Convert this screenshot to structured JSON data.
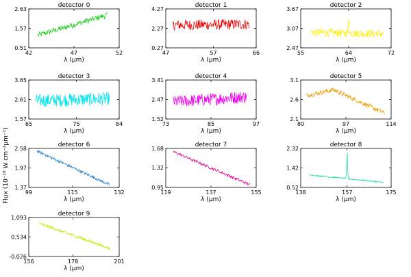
{
  "figure": {
    "ylabel": "Flux (10⁻¹⁸ W cm⁻²μm⁻¹)"
  },
  "chart_data": [
    {
      "type": "line",
      "title": "detector 0",
      "xlabel": "λ (μm)",
      "xticks": [
        "42",
        "47",
        "52"
      ],
      "yticks": [
        "0.51",
        "1.57",
        "2.63"
      ],
      "xlim": [
        42,
        52
      ],
      "ylim": [
        0.51,
        2.63
      ],
      "color": "#00cc00",
      "xrange": [
        43.0,
        50.7
      ],
      "shape": "rising",
      "start": 1.2,
      "end": 2.3,
      "noise": 0.15,
      "n": 120
    },
    {
      "type": "line",
      "title": "detector 1",
      "xlabel": "λ (μm)",
      "xticks": [
        "47",
        "57",
        "66"
      ],
      "yticks": [
        "0.27",
        "2.27",
        "4.27"
      ],
      "xlim": [
        47,
        66
      ],
      "ylim": [
        0.27,
        4.27
      ],
      "color": "#ee0000",
      "xrange": [
        48.5,
        64.5
      ],
      "shape": "flat",
      "start": 2.6,
      "end": 2.7,
      "noise": 0.55,
      "n": 160
    },
    {
      "type": "line",
      "title": "detector 2",
      "xlabel": "λ (μm)",
      "xticks": [
        "55",
        "64",
        "72"
      ],
      "yticks": [
        "2.47",
        "3.07",
        "3.67"
      ],
      "xlim": [
        55,
        72
      ],
      "ylim": [
        2.47,
        3.67
      ],
      "color": "#ffee00",
      "xrange": [
        57.0,
        70.5
      ],
      "shape": "flat",
      "start": 2.95,
      "end": 2.9,
      "noise": 0.12,
      "n": 150,
      "peak": [
        64.0,
        0.5
      ]
    },
    {
      "type": "line",
      "title": "detector 3",
      "xlabel": "λ (μm)",
      "xticks": [
        "65",
        "75",
        "84"
      ],
      "yticks": [
        "1.57",
        "2.61",
        "3.65"
      ],
      "xlim": [
        65,
        84
      ],
      "ylim": [
        1.57,
        3.65
      ],
      "color": "#00e5ee",
      "xrange": [
        66.5,
        82.0
      ],
      "shape": "flat",
      "start": 2.55,
      "end": 2.65,
      "noise": 0.35,
      "n": 170
    },
    {
      "type": "line",
      "title": "detector 4",
      "xlabel": "λ (μm)",
      "xticks": [
        "73",
        "85",
        "97"
      ],
      "yticks": [
        "1.52",
        "2.47",
        "3.41"
      ],
      "xlim": [
        73,
        97
      ],
      "ylim": [
        1.52,
        3.41
      ],
      "color": "#ee00ee",
      "xrange": [
        75.0,
        94.5
      ],
      "shape": "flat",
      "start": 2.35,
      "end": 2.6,
      "noise": 0.3,
      "n": 170
    },
    {
      "type": "line",
      "title": "detector 5",
      "xlabel": "λ (μm)",
      "xticks": [
        "80",
        "97",
        "114"
      ],
      "yticks": [
        "2.1",
        "2.6",
        "3.1"
      ],
      "xlim": [
        80,
        114
      ],
      "ylim": [
        2.1,
        3.1
      ],
      "color": "#ee9900",
      "xrange": [
        82.0,
        111.5
      ],
      "shape": "arch",
      "start": 2.7,
      "end": 2.25,
      "peakval": 2.85,
      "noise": 0.06,
      "n": 160
    },
    {
      "type": "line",
      "title": "detector 6",
      "xlabel": "λ (μm)",
      "xticks": [
        "99",
        "115",
        "132"
      ],
      "yticks": [
        "1.37",
        "1.97",
        "2.58"
      ],
      "xlim": [
        99,
        132
      ],
      "ylim": [
        1.37,
        2.58
      ],
      "color": "#1177cc",
      "xrange": [
        102.0,
        128.5
      ],
      "shape": "falling",
      "start": 2.5,
      "end": 1.45,
      "noise": 0.04,
      "n": 150
    },
    {
      "type": "line",
      "title": "detector 7",
      "xlabel": "λ (μm)",
      "xticks": [
        "119",
        "137",
        "155"
      ],
      "yticks": [
        "0.95",
        "1.32",
        "1.68"
      ],
      "xlim": [
        119,
        155
      ],
      "ylim": [
        0.95,
        1.68
      ],
      "color": "#dd0088",
      "xrange": [
        122.0,
        152.5
      ],
      "shape": "falling",
      "start": 1.62,
      "end": 1.0,
      "noise": 0.025,
      "n": 150
    },
    {
      "type": "line",
      "title": "detector 8",
      "xlabel": "λ (μm)",
      "xticks": [
        "138",
        "157",
        "175"
      ],
      "yticks": [
        "0.52",
        "1.42",
        "2.32"
      ],
      "xlim": [
        138,
        175
      ],
      "ylim": [
        0.52,
        2.32
      ],
      "color": "#22ddaa",
      "xrange": [
        141.5,
        172.0
      ],
      "shape": "falling",
      "start": 1.1,
      "end": 0.75,
      "noise": 0.03,
      "n": 160,
      "peak": [
        157.0,
        1.2
      ]
    },
    {
      "type": "line",
      "title": "detector 9",
      "xlabel": "λ (μm)",
      "xticks": [
        "156",
        "178",
        "201"
      ],
      "yticks": [
        "-0.026",
        "0.534",
        "1.093"
      ],
      "xlim": [
        156,
        201
      ],
      "ylim": [
        -0.026,
        1.093
      ],
      "color": "#bbee00",
      "xrange": [
        161.0,
        196.5
      ],
      "shape": "falling",
      "start": 0.93,
      "end": 0.2,
      "noise": 0.04,
      "n": 160
    }
  ]
}
